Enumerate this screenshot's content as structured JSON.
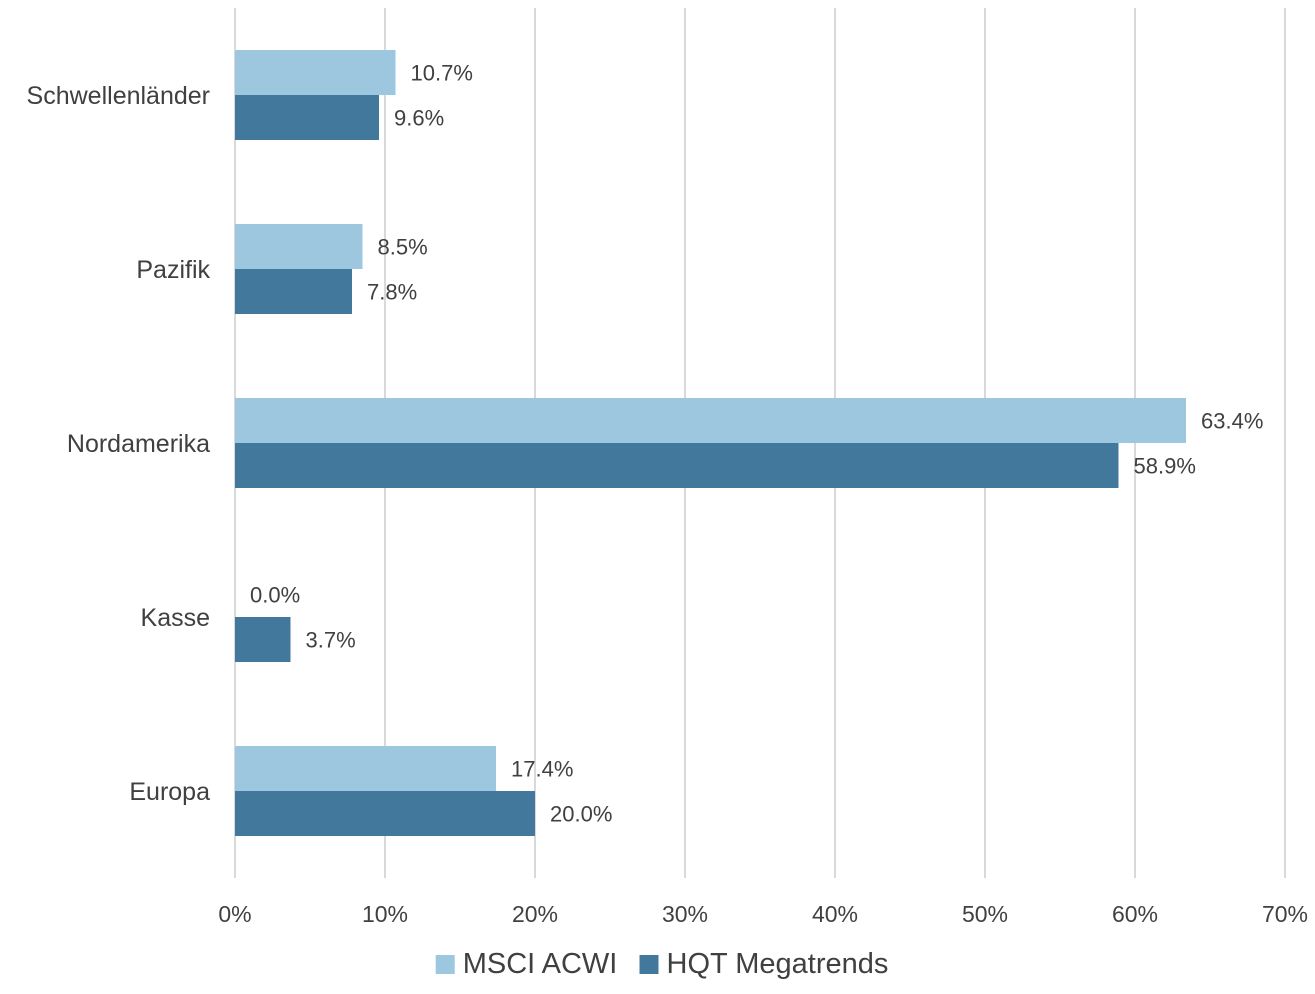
{
  "chart_data": {
    "type": "bar",
    "orientation": "horizontal",
    "title": "",
    "xlabel": "",
    "ylabel": "",
    "xlim": [
      0,
      70
    ],
    "x_ticks": [
      0,
      10,
      20,
      30,
      40,
      50,
      60,
      70
    ],
    "x_tick_format": "{v}%",
    "grid": "vertical",
    "legend": "bottom",
    "categories": [
      "Schwellenländer",
      "Pazifik",
      "Nordamerika",
      "Kasse",
      "Europa"
    ],
    "series": [
      {
        "name": "MSCI ACWI",
        "color": "#9dc6df",
        "values": [
          10.7,
          8.5,
          63.4,
          0.0,
          17.4
        ],
        "labels": [
          "10.7%",
          "8.5%",
          "63.4%",
          "0.0%",
          "17.4%"
        ]
      },
      {
        "name": "HQT Megatrends",
        "color": "#41789b",
        "values": [
          9.6,
          7.8,
          58.9,
          3.7,
          20.0
        ],
        "labels": [
          "9.6%",
          "7.8%",
          "58.9%",
          "3.7%",
          "20.0%"
        ]
      }
    ]
  }
}
